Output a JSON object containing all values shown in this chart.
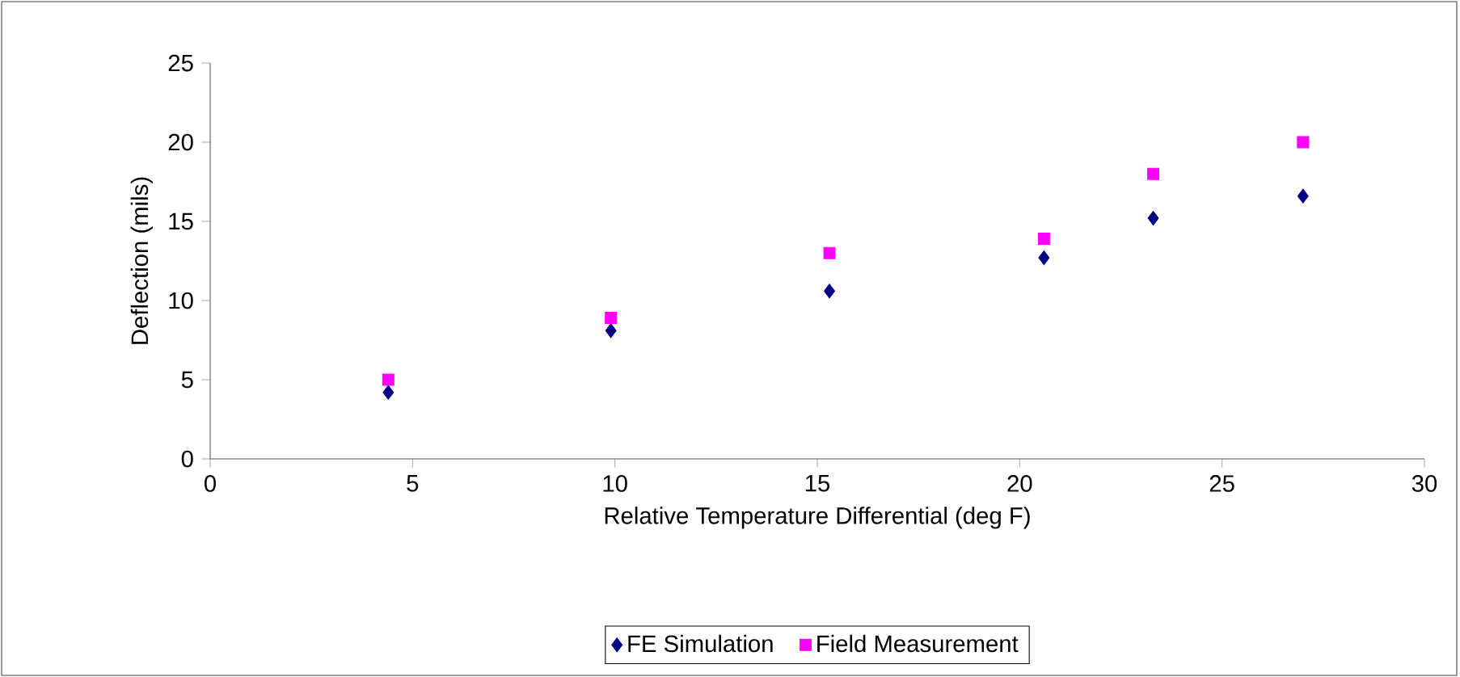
{
  "chart_data": {
    "type": "scatter",
    "xlabel": "Relative Temperature Differential (deg F)",
    "ylabel": "Deflection (mils)",
    "x": [
      4.4,
      9.9,
      15.3,
      20.6,
      23.3,
      27
    ],
    "series": [
      {
        "name": "FE Simulation",
        "color": "#000080",
        "marker": "diamond",
        "values": [
          4.2,
          8.1,
          10.6,
          12.7,
          15.2,
          16.6
        ]
      },
      {
        "name": "Field Measurement",
        "color": "#ff00ff",
        "marker": "square",
        "values": [
          5.0,
          8.9,
          13.0,
          13.9,
          18.0,
          20.0
        ]
      }
    ],
    "xlim": [
      0,
      30
    ],
    "ylim": [
      0,
      25
    ],
    "xticks": [
      0,
      5,
      10,
      15,
      20,
      25,
      30
    ],
    "yticks": [
      0,
      5,
      10,
      15,
      20,
      25
    ],
    "grid": false,
    "legend": "bottom"
  }
}
